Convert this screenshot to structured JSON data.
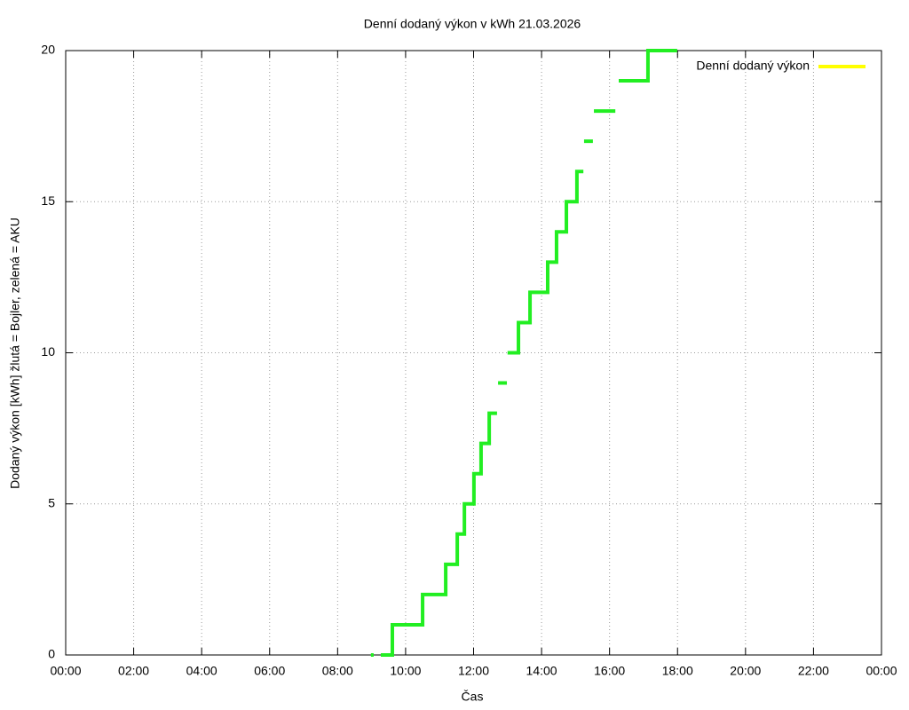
{
  "chart_data": {
    "type": "line",
    "title": "Denní dodaný výkon v kWh 21.03.2026",
    "x_label": "Čas",
    "y_label": "Dodaný výkon [kWh]  žlutá = Bojler, zelená = AKU",
    "xlim": [
      0,
      24
    ],
    "xticks": [
      {
        "value": 0,
        "label": "00:00"
      },
      {
        "value": 2,
        "label": "02:00"
      },
      {
        "value": 4,
        "label": "04:00"
      },
      {
        "value": 6,
        "label": "06:00"
      },
      {
        "value": 8,
        "label": "08:00"
      },
      {
        "value": 10,
        "label": "10:00"
      },
      {
        "value": 12,
        "label": "12:00"
      },
      {
        "value": 14,
        "label": "14:00"
      },
      {
        "value": 16,
        "label": "16:00"
      },
      {
        "value": 18,
        "label": "18:00"
      },
      {
        "value": 20,
        "label": "20:00"
      },
      {
        "value": 22,
        "label": "22:00"
      },
      {
        "value": 24,
        "label": "00:00"
      }
    ],
    "ylim": [
      0,
      20
    ],
    "yticks": [
      0,
      5,
      10,
      15,
      20
    ],
    "grid": true,
    "legend": "top-right",
    "series": [
      {
        "name": "Denní dodaný výkon",
        "color": "#ffff00",
        "x": [],
        "values": []
      },
      {
        "color": "#22ee22",
        "x": [
          8.98,
          9.06,
          null,
          9.27,
          9.61,
          9.61,
          10.5,
          10.5,
          11.18,
          11.18,
          11.52,
          11.52,
          11.73,
          11.73,
          12.01,
          12.01,
          12.22,
          12.22,
          12.46,
          12.46,
          12.69,
          null,
          12.72,
          12.98,
          null,
          13.0,
          13.32,
          13.32,
          13.66,
          13.66,
          14.18,
          14.18,
          14.44,
          14.44,
          14.73,
          14.73,
          15.04,
          15.04,
          15.23,
          null,
          15.25,
          15.51,
          null,
          15.54,
          16.17,
          null,
          16.27,
          17.13,
          17.13,
          17.99
        ],
        "values": [
          0,
          0,
          null,
          0,
          0,
          1,
          1,
          2,
          2,
          3,
          3,
          4,
          4,
          5,
          5,
          6,
          6,
          7,
          7,
          8,
          8,
          null,
          9,
          9,
          null,
          10,
          10,
          11,
          11,
          12,
          12,
          13,
          13,
          14,
          14,
          15,
          15,
          16,
          16,
          null,
          17,
          17,
          null,
          18,
          18,
          null,
          19,
          19,
          20,
          20
        ]
      }
    ]
  }
}
